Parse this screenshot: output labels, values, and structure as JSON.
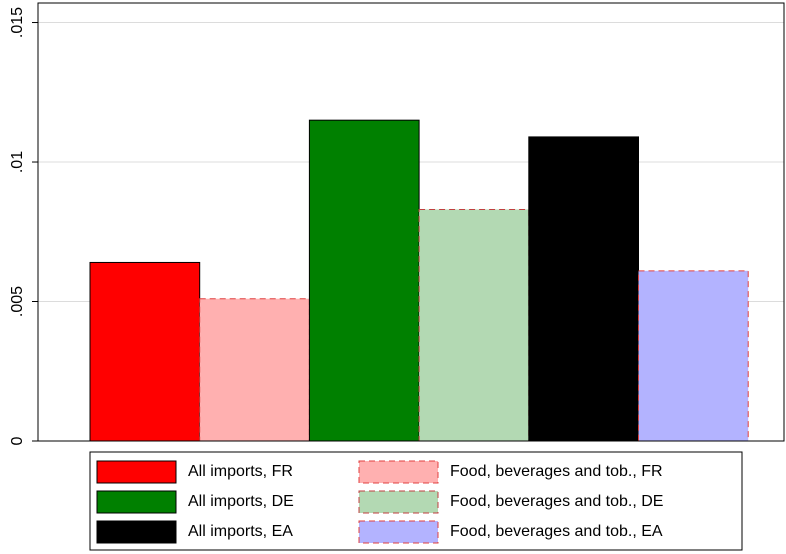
{
  "chart_data": {
    "type": "bar",
    "series": [
      {
        "name": "All imports, FR",
        "color": "#ff0000",
        "edgecolor": "#000000",
        "linestyle": "solid",
        "values": [
          0.0064
        ]
      },
      {
        "name": "Food, beverages and tob., FR",
        "color": "#ffb0b0",
        "edgecolor": "#e04040",
        "linestyle": "dashed",
        "values": [
          0.0051
        ]
      },
      {
        "name": "All imports, DE",
        "color": "#008000",
        "edgecolor": "#000000",
        "linestyle": "solid",
        "values": [
          0.0115
        ]
      },
      {
        "name": "Food, beverages and tob., DE",
        "color": "#b3d9b3",
        "edgecolor": "#c04040",
        "linestyle": "dashed",
        "values": [
          0.0083
        ]
      },
      {
        "name": "All imports, EA",
        "color": "#000000",
        "edgecolor": "#000000",
        "linestyle": "solid",
        "values": [
          0.0109
        ]
      },
      {
        "name": "Food, beverages and tob., EA",
        "color": "#b3b3ff",
        "edgecolor": "#e04040",
        "linestyle": "dashed",
        "values": [
          0.0061
        ]
      }
    ],
    "ylim": [
      0,
      0.0157
    ],
    "yticks": [
      0,
      {
        "value": 0.005,
        "label": ".005"
      },
      {
        "value": 0.01,
        "label": ".01"
      },
      {
        "value": 0.015,
        "label": ".015"
      }
    ],
    "grid": true
  }
}
